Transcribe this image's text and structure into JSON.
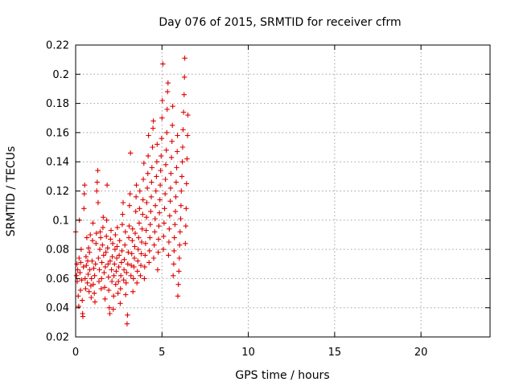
{
  "chart_data": {
    "type": "scatter",
    "title": "Day 076 of 2015, SRMTID for receiver cfrm",
    "xlabel": "GPS time / hours",
    "ylabel": "SRMTID / TECUs",
    "xlim": [
      0,
      24
    ],
    "ylim": [
      0.02,
      0.22
    ],
    "xticks": [
      0,
      5,
      10,
      15,
      20
    ],
    "xtick_labels": [
      "0",
      "5",
      "10",
      "15",
      "20"
    ],
    "yticks": [
      0.02,
      0.04,
      0.06,
      0.08,
      0.1,
      0.12,
      0.14,
      0.16,
      0.18,
      0.2,
      0.22
    ],
    "ytick_labels": [
      "0.02",
      "0.04",
      "0.06",
      "0.08",
      "0.1",
      "0.12",
      "0.14",
      "0.16",
      "0.18",
      "0.2",
      "0.22"
    ],
    "grid": true,
    "marker": "plus",
    "color": "#e00000",
    "series": [
      {
        "name": "cfrm",
        "points": [
          [
            0.0,
            0.092
          ],
          [
            0.05,
            0.062
          ],
          [
            0.08,
            0.07
          ],
          [
            0.1,
            0.058
          ],
          [
            0.12,
            0.066
          ],
          [
            0.15,
            0.048
          ],
          [
            0.18,
            0.041
          ],
          [
            0.2,
            0.074
          ],
          [
            0.22,
            0.1
          ],
          [
            0.25,
            0.064
          ],
          [
            0.28,
            0.052
          ],
          [
            0.3,
            0.071
          ],
          [
            0.32,
            0.08
          ],
          [
            0.35,
            0.059
          ],
          [
            0.38,
            0.045
          ],
          [
            0.4,
            0.036
          ],
          [
            0.42,
            0.034
          ],
          [
            0.45,
            0.068
          ],
          [
            0.48,
            0.108
          ],
          [
            0.5,
            0.118
          ],
          [
            0.52,
            0.124
          ],
          [
            0.55,
            0.06
          ],
          [
            0.58,
            0.053
          ],
          [
            0.6,
            0.075
          ],
          [
            0.62,
            0.069
          ],
          [
            0.65,
            0.088
          ],
          [
            0.68,
            0.057
          ],
          [
            0.7,
            0.072
          ],
          [
            0.72,
            0.063
          ],
          [
            0.75,
            0.081
          ],
          [
            0.78,
            0.051
          ],
          [
            0.8,
            0.078
          ],
          [
            0.82,
            0.066
          ],
          [
            0.85,
            0.09
          ],
          [
            0.88,
            0.055
          ],
          [
            0.9,
            0.047
          ],
          [
            0.92,
            0.06
          ],
          [
            0.95,
            0.072
          ],
          [
            0.98,
            0.086
          ],
          [
            1.0,
            0.098
          ],
          [
            1.02,
            0.056
          ],
          [
            1.05,
            0.067
          ],
          [
            1.08,
            0.05
          ],
          [
            1.1,
            0.062
          ],
          [
            1.12,
            0.044
          ],
          [
            1.15,
            0.07
          ],
          [
            1.18,
            0.084
          ],
          [
            1.2,
            0.091
          ],
          [
            1.22,
            0.12
          ],
          [
            1.25,
            0.126
          ],
          [
            1.28,
            0.134
          ],
          [
            1.3,
            0.112
          ],
          [
            1.32,
            0.074
          ],
          [
            1.35,
            0.058
          ],
          [
            1.38,
            0.066
          ],
          [
            1.4,
            0.08
          ],
          [
            1.42,
            0.092
          ],
          [
            1.45,
            0.088
          ],
          [
            1.48,
            0.053
          ],
          [
            1.5,
            0.06
          ],
          [
            1.52,
            0.071
          ],
          [
            1.55,
            0.083
          ],
          [
            1.58,
            0.095
          ],
          [
            1.6,
            0.102
          ],
          [
            1.62,
            0.076
          ],
          [
            1.65,
            0.064
          ],
          [
            1.68,
            0.054
          ],
          [
            1.7,
            0.046
          ],
          [
            1.72,
            0.068
          ],
          [
            1.75,
            0.078
          ],
          [
            1.78,
            0.089
          ],
          [
            1.8,
            0.1
          ],
          [
            1.82,
            0.124
          ],
          [
            1.85,
            0.081
          ],
          [
            1.88,
            0.07
          ],
          [
            1.9,
            0.061
          ],
          [
            1.92,
            0.052
          ],
          [
            1.95,
            0.04
          ],
          [
            1.98,
            0.036
          ],
          [
            2.0,
            0.072
          ],
          [
            2.02,
            0.087
          ],
          [
            2.05,
            0.093
          ],
          [
            2.08,
            0.066
          ],
          [
            2.1,
            0.058
          ],
          [
            2.12,
            0.075
          ],
          [
            2.15,
            0.084
          ],
          [
            2.18,
            0.039
          ],
          [
            2.2,
            0.048
          ],
          [
            2.22,
            0.062
          ],
          [
            2.25,
            0.07
          ],
          [
            2.28,
            0.08
          ],
          [
            2.3,
            0.09
          ],
          [
            2.32,
            0.056
          ],
          [
            2.35,
            0.065
          ],
          [
            2.38,
            0.074
          ],
          [
            2.4,
            0.082
          ],
          [
            2.42,
            0.095
          ],
          [
            2.45,
            0.05
          ],
          [
            2.48,
            0.058
          ],
          [
            2.5,
            0.068
          ],
          [
            2.52,
            0.076
          ],
          [
            2.55,
            0.086
          ],
          [
            2.58,
            0.043
          ],
          [
            2.6,
            0.053
          ],
          [
            2.62,
            0.062
          ],
          [
            2.65,
            0.071
          ],
          [
            2.68,
            0.079
          ],
          [
            2.7,
            0.097
          ],
          [
            2.72,
            0.104
          ],
          [
            2.75,
            0.112
          ],
          [
            2.78,
            0.059
          ],
          [
            2.8,
            0.066
          ],
          [
            2.82,
            0.073
          ],
          [
            2.85,
            0.083
          ],
          [
            2.88,
            0.092
          ],
          [
            2.9,
            0.049
          ],
          [
            2.92,
            0.057
          ],
          [
            2.95,
            0.064
          ],
          [
            2.98,
            0.029
          ],
          [
            3.0,
            0.035
          ],
          [
            3.02,
            0.07
          ],
          [
            3.05,
            0.078
          ],
          [
            3.08,
            0.088
          ],
          [
            3.1,
            0.096
          ],
          [
            3.12,
            0.11
          ],
          [
            3.15,
            0.118
          ],
          [
            3.18,
            0.146
          ],
          [
            3.2,
            0.062
          ],
          [
            3.22,
            0.069
          ],
          [
            3.25,
            0.077
          ],
          [
            3.28,
            0.086
          ],
          [
            3.3,
            0.094
          ],
          [
            3.32,
            0.051
          ],
          [
            3.35,
            0.06
          ],
          [
            3.38,
            0.068
          ],
          [
            3.4,
            0.074
          ],
          [
            3.42,
            0.082
          ],
          [
            3.45,
            0.091
          ],
          [
            3.48,
            0.106
          ],
          [
            3.5,
            0.116
          ],
          [
            3.52,
            0.124
          ],
          [
            3.55,
            0.057
          ],
          [
            3.58,
            0.065
          ],
          [
            3.6,
            0.072
          ],
          [
            3.62,
            0.08
          ],
          [
            3.65,
            0.088
          ],
          [
            3.68,
            0.098
          ],
          [
            3.7,
            0.108
          ],
          [
            3.72,
            0.12
          ],
          [
            3.75,
            0.062
          ],
          [
            3.78,
            0.069
          ],
          [
            3.8,
            0.077
          ],
          [
            3.82,
            0.085
          ],
          [
            3.85,
            0.094
          ],
          [
            3.88,
            0.104
          ],
          [
            3.9,
            0.114
          ],
          [
            3.92,
            0.128
          ],
          [
            3.95,
            0.139
          ],
          [
            3.98,
            0.06
          ],
          [
            4.0,
            0.068
          ],
          [
            4.02,
            0.076
          ],
          [
            4.05,
            0.084
          ],
          [
            4.08,
            0.093
          ],
          [
            4.1,
            0.102
          ],
          [
            4.12,
            0.112
          ],
          [
            4.15,
            0.122
          ],
          [
            4.18,
            0.132
          ],
          [
            4.2,
            0.144
          ],
          [
            4.22,
            0.158
          ],
          [
            4.25,
            0.071
          ],
          [
            4.28,
            0.079
          ],
          [
            4.3,
            0.088
          ],
          [
            4.32,
            0.097
          ],
          [
            4.35,
            0.106
          ],
          [
            4.38,
            0.116
          ],
          [
            4.4,
            0.126
          ],
          [
            4.42,
            0.136
          ],
          [
            4.45,
            0.15
          ],
          [
            4.48,
            0.163
          ],
          [
            4.5,
            0.168
          ],
          [
            4.52,
            0.074
          ],
          [
            4.55,
            0.083
          ],
          [
            4.58,
            0.092
          ],
          [
            4.6,
            0.101
          ],
          [
            4.62,
            0.11
          ],
          [
            4.65,
            0.12
          ],
          [
            4.68,
            0.13
          ],
          [
            4.7,
            0.14
          ],
          [
            4.72,
            0.152
          ],
          [
            4.75,
            0.066
          ],
          [
            4.78,
            0.078
          ],
          [
            4.8,
            0.087
          ],
          [
            4.82,
            0.096
          ],
          [
            4.85,
            0.105
          ],
          [
            4.88,
            0.114
          ],
          [
            4.9,
            0.124
          ],
          [
            4.92,
            0.134
          ],
          [
            4.95,
            0.144
          ],
          [
            4.98,
            0.156
          ],
          [
            5.0,
            0.17
          ],
          [
            5.02,
            0.182
          ],
          [
            5.05,
            0.207
          ],
          [
            5.08,
            0.08
          ],
          [
            5.1,
            0.089
          ],
          [
            5.12,
            0.098
          ],
          [
            5.15,
            0.108
          ],
          [
            5.18,
            0.118
          ],
          [
            5.2,
            0.128
          ],
          [
            5.22,
            0.138
          ],
          [
            5.25,
            0.148
          ],
          [
            5.28,
            0.16
          ],
          [
            5.3,
            0.176
          ],
          [
            5.32,
            0.188
          ],
          [
            5.35,
            0.194
          ],
          [
            5.38,
            0.076
          ],
          [
            5.4,
            0.085
          ],
          [
            5.42,
            0.094
          ],
          [
            5.45,
            0.103
          ],
          [
            5.48,
            0.113
          ],
          [
            5.5,
            0.122
          ],
          [
            5.52,
            0.132
          ],
          [
            5.55,
            0.143
          ],
          [
            5.58,
            0.154
          ],
          [
            5.6,
            0.165
          ],
          [
            5.62,
            0.178
          ],
          [
            5.65,
            0.062
          ],
          [
            5.68,
            0.07
          ],
          [
            5.7,
            0.079
          ],
          [
            5.72,
            0.088
          ],
          [
            5.75,
            0.097
          ],
          [
            5.78,
            0.106
          ],
          [
            5.8,
            0.116
          ],
          [
            5.82,
            0.126
          ],
          [
            5.85,
            0.136
          ],
          [
            5.88,
            0.147
          ],
          [
            5.9,
            0.158
          ],
          [
            5.92,
            0.048
          ],
          [
            5.95,
            0.056
          ],
          [
            5.98,
            0.065
          ],
          [
            6.0,
            0.074
          ],
          [
            6.02,
            0.083
          ],
          [
            6.05,
            0.092
          ],
          [
            6.08,
            0.101
          ],
          [
            6.1,
            0.11
          ],
          [
            6.12,
            0.12
          ],
          [
            6.15,
            0.13
          ],
          [
            6.18,
            0.14
          ],
          [
            6.2,
            0.15
          ],
          [
            6.22,
            0.162
          ],
          [
            6.25,
            0.174
          ],
          [
            6.28,
            0.186
          ],
          [
            6.3,
            0.198
          ],
          [
            6.32,
            0.211
          ],
          [
            6.35,
            0.084
          ],
          [
            6.38,
            0.096
          ],
          [
            6.4,
            0.108
          ],
          [
            6.42,
            0.125
          ],
          [
            6.45,
            0.142
          ],
          [
            6.48,
            0.158
          ],
          [
            6.5,
            0.172
          ]
        ]
      }
    ]
  }
}
